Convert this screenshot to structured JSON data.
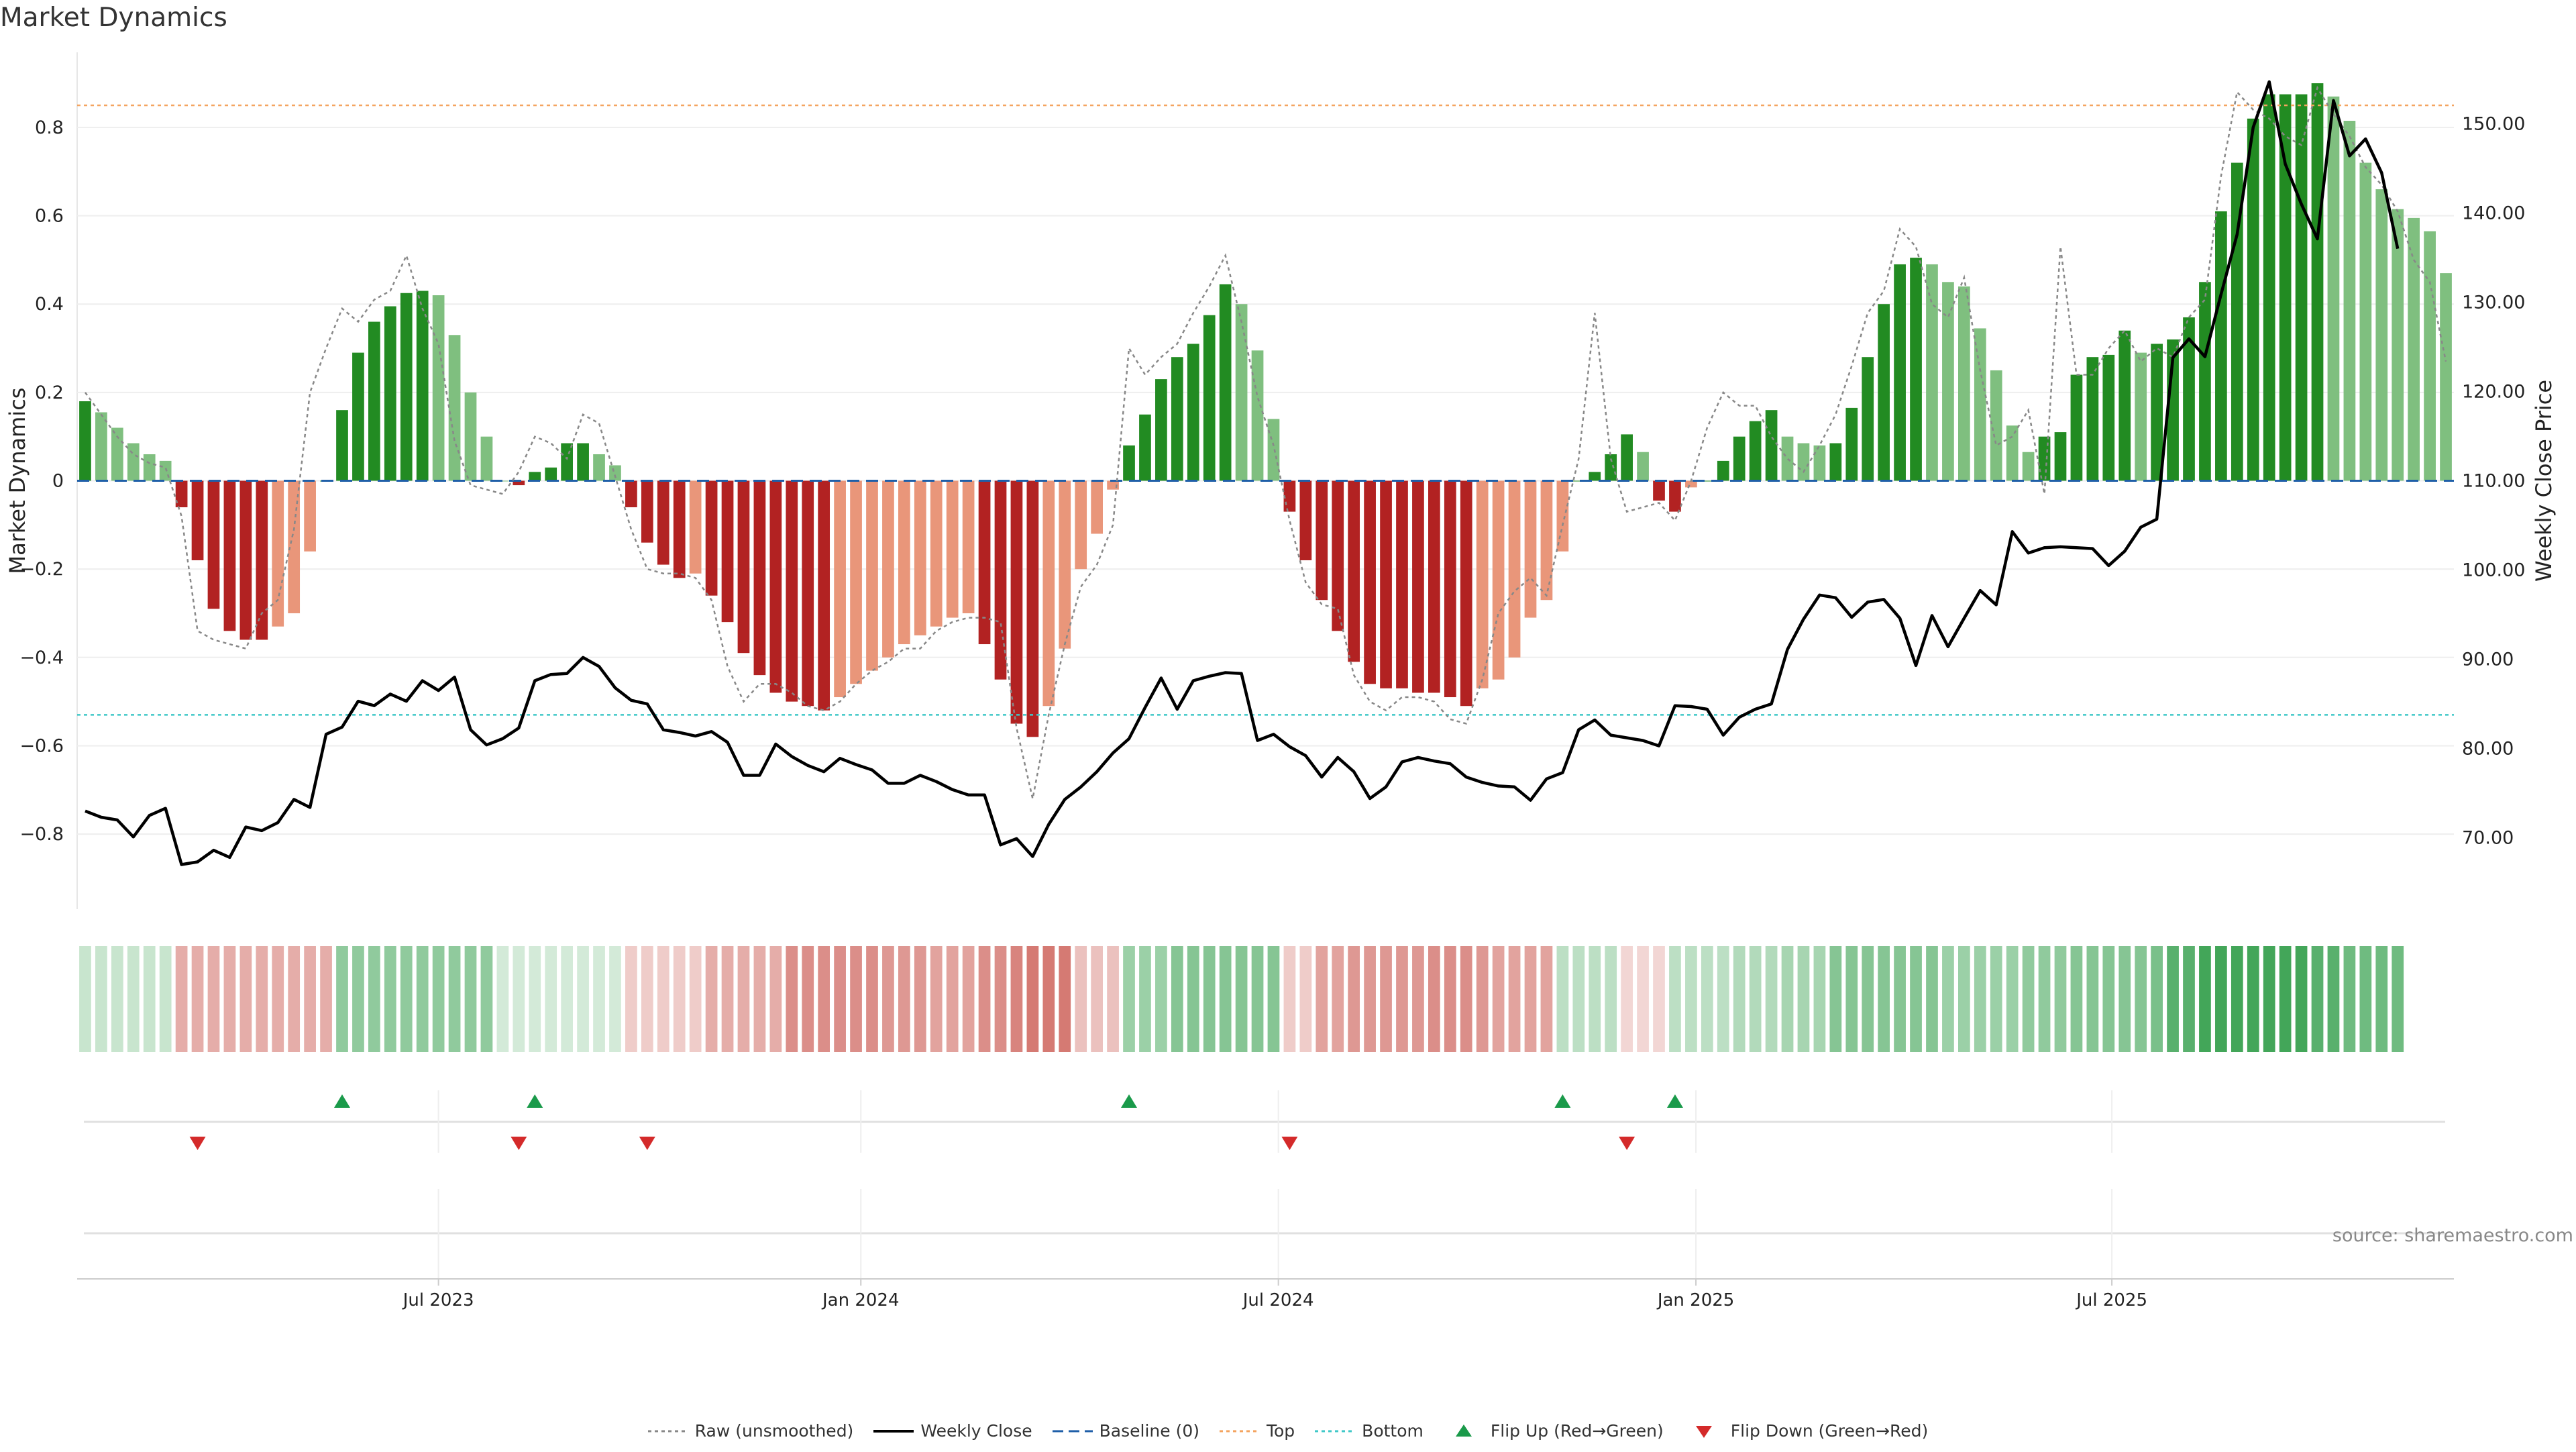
{
  "chart_data": {
    "type": "bar",
    "title": "Market Dynamics",
    "ylabel": "Market Dynamics",
    "ylabel_right": "Weekly Close Price",
    "source": "source: sharemaestro.com",
    "ylim": [
      -0.97,
      0.97
    ],
    "ylim_right": [
      62,
      158
    ],
    "left_ticks": [
      "−0.8",
      "−0.6",
      "−0.4",
      "−0.2",
      "0",
      "0.2",
      "0.4",
      "0.6",
      "0.8"
    ],
    "left_tick_values": [
      -0.8,
      -0.6,
      -0.4,
      -0.2,
      0,
      0.2,
      0.4,
      0.6,
      0.8
    ],
    "right_ticks": [
      "70.00",
      "80.00",
      "90.00",
      "100.00",
      "110.00",
      "120.00",
      "130.00",
      "140.00",
      "150.00"
    ],
    "right_tick_values": [
      70,
      80,
      90,
      100,
      110,
      120,
      130,
      140,
      150
    ],
    "x_ticks": [
      "Jul 2023",
      "Jan 2024",
      "Jul 2024",
      "Jan 2025",
      "Jul 2025"
    ],
    "x_tick_weeks": [
      22,
      48.3,
      74.3,
      100.3,
      126.2
    ],
    "top_level": 0.85,
    "bottom_level": -0.53,
    "values": [
      0.18,
      0.155,
      0.12,
      0.085,
      0.06,
      0.045,
      -0.06,
      -0.18,
      -0.29,
      -0.34,
      -0.36,
      -0.36,
      -0.33,
      -0.3,
      -0.16,
      0,
      0.16,
      0.29,
      0.36,
      0.395,
      0.425,
      0.43,
      0.42,
      0.33,
      0.2,
      0.1,
      0,
      -0.01,
      0.02,
      0.03,
      0.085,
      0.085,
      0.06,
      0.035,
      -0.06,
      -0.14,
      -0.19,
      -0.22,
      -0.21,
      -0.26,
      -0.32,
      -0.39,
      -0.44,
      -0.48,
      -0.5,
      -0.51,
      -0.52,
      -0.49,
      -0.46,
      -0.43,
      -0.4,
      -0.37,
      -0.35,
      -0.33,
      -0.31,
      -0.3,
      -0.37,
      -0.45,
      -0.55,
      -0.58,
      -0.51,
      -0.38,
      -0.2,
      -0.12,
      -0.02,
      0.08,
      0.15,
      0.23,
      0.28,
      0.31,
      0.375,
      0.445,
      0.4,
      0.295,
      0.14,
      -0.07,
      -0.18,
      -0.27,
      -0.34,
      -0.41,
      -0.46,
      -0.47,
      -0.47,
      -0.48,
      -0.48,
      -0.49,
      -0.51,
      -0.47,
      -0.45,
      -0.4,
      -0.31,
      -0.27,
      -0.16,
      0,
      0.02,
      0.06,
      0.105,
      0.065,
      -0.045,
      -0.07,
      -0.015,
      0,
      0.045,
      0.1,
      0.135,
      0.16,
      0.1,
      0.085,
      0.08,
      0.085,
      0.165,
      0.28,
      0.4,
      0.49,
      0.505,
      0.49,
      0.45,
      0.44,
      0.345,
      0.25,
      0.125,
      0.065,
      0.1,
      0.11,
      0.24,
      0.28,
      0.285,
      0.34,
      0.29,
      0.31,
      0.32,
      0.37,
      0.45,
      0.61,
      0.72,
      0.82,
      0.875,
      0.875,
      0.875,
      0.9,
      0.87,
      0.815,
      0.72,
      0.66,
      0.615,
      0.595,
      0.565,
      0.47
    ],
    "raw": [
      0.2,
      0.15,
      0.1,
      0.06,
      0.04,
      0.03,
      -0.08,
      -0.34,
      -0.36,
      -0.37,
      -0.38,
      -0.3,
      -0.27,
      -0.11,
      0.2,
      0.3,
      0.39,
      0.36,
      0.41,
      0.43,
      0.51,
      0.39,
      0.31,
      0.09,
      -0.01,
      -0.02,
      -0.03,
      0.02,
      0.1,
      0.085,
      0.05,
      0.15,
      0.13,
      0.01,
      -0.11,
      -0.2,
      -0.21,
      -0.21,
      -0.22,
      -0.27,
      -0.42,
      -0.5,
      -0.46,
      -0.46,
      -0.48,
      -0.51,
      -0.52,
      -0.5,
      -0.46,
      -0.43,
      -0.41,
      -0.38,
      -0.38,
      -0.34,
      -0.32,
      -0.31,
      -0.31,
      -0.32,
      -0.56,
      -0.72,
      -0.53,
      -0.37,
      -0.24,
      -0.19,
      -0.1,
      0.3,
      0.24,
      0.28,
      0.31,
      0.38,
      0.44,
      0.51,
      0.36,
      0.19,
      0.08,
      -0.09,
      -0.23,
      -0.28,
      -0.29,
      -0.44,
      -0.5,
      -0.52,
      -0.49,
      -0.49,
      -0.5,
      -0.54,
      -0.55,
      -0.45,
      -0.3,
      -0.25,
      -0.22,
      -0.26,
      -0.1,
      0.05,
      0.38,
      0.05,
      -0.07,
      -0.06,
      -0.05,
      -0.09,
      0,
      0.12,
      0.2,
      0.17,
      0.17,
      0.1,
      0.05,
      0.02,
      0.08,
      0.15,
      0.26,
      0.38,
      0.43,
      0.57,
      0.53,
      0.4,
      0.37,
      0.46,
      0.25,
      0.08,
      0.1,
      0.16,
      -0.03,
      0.53,
      0.24,
      0.24,
      0.3,
      0.34,
      0.27,
      0.3,
      0.28,
      0.37,
      0.41,
      0.69,
      0.88,
      0.84,
      0.82,
      0.78,
      0.76,
      0.89,
      0.83,
      0.78,
      0.71,
      0.67,
      0.61,
      0.5,
      0.45,
      0.27
    ],
    "weekly_close": [
      73,
      72.3,
      72,
      70.1,
      72.5,
      73.3,
      67,
      67.3,
      68.6,
      67.8,
      71.2,
      70.8,
      71.7,
      74.3,
      73.4,
      81.6,
      82.4,
      85.3,
      84.8,
      86.1,
      85.3,
      87.6,
      86.5,
      88,
      82.1,
      80.4,
      81.1,
      82.3,
      87.6,
      88.3,
      88.4,
      90.2,
      89.2,
      86.8,
      85.4,
      85,
      82.1,
      81.8,
      81.4,
      81.9,
      80.7,
      77,
      77,
      80.5,
      79.1,
      78.1,
      77.4,
      78.9,
      78.2,
      77.6,
      76.1,
      76.1,
      77,
      76.3,
      75.4,
      74.8,
      74.8,
      69.2,
      69.9,
      67.9,
      71.5,
      74.3,
      75.7,
      77.4,
      79.5,
      81.1,
      84.6,
      87.9,
      84.4,
      87.6,
      88.1,
      88.5,
      88.4,
      80.9,
      81.6,
      80.2,
      79.2,
      76.8,
      79,
      77.4,
      74.4,
      75.7,
      78.5,
      79,
      78.6,
      78.3,
      76.8,
      76.2,
      75.8,
      75.7,
      74.2,
      76.6,
      77.3,
      82.1,
      83.2,
      81.5,
      81.2,
      80.9,
      80.3,
      84.8,
      84.7,
      84.4,
      81.5,
      83.5,
      84.4,
      85,
      91.1,
      94.5,
      97.2,
      96.9,
      94.7,
      96.4,
      96.7,
      94.6,
      89.3,
      94.9,
      91.4,
      94.6,
      97.7,
      96.1,
      104.3,
      101.9,
      102.5,
      102.6,
      102.5,
      102.4,
      100.5,
      102.1,
      104.8,
      105.7,
      123.8,
      125.9,
      123.9,
      130.9,
      137.6,
      149.6,
      154.7,
      145.5,
      141,
      137.1,
      152.6,
      146.4,
      148.3,
      144.5,
      136
    ],
    "heat": [
      0.25,
      0.25,
      0.25,
      0.25,
      0.25,
      0.25,
      -0.4,
      -0.4,
      -0.4,
      -0.4,
      -0.4,
      -0.4,
      -0.4,
      -0.4,
      -0.4,
      -0.4,
      0.5,
      0.5,
      0.5,
      0.5,
      0.5,
      0.5,
      0.5,
      0.5,
      0.5,
      0.5,
      0.2,
      0.2,
      0.2,
      0.2,
      0.2,
      0.2,
      0.2,
      0.2,
      -0.25,
      -0.25,
      -0.25,
      -0.25,
      -0.25,
      -0.4,
      -0.4,
      -0.4,
      -0.4,
      -0.4,
      -0.55,
      -0.55,
      -0.55,
      -0.55,
      -0.55,
      -0.55,
      -0.5,
      -0.5,
      -0.5,
      -0.45,
      -0.45,
      -0.45,
      -0.55,
      -0.55,
      -0.6,
      -0.65,
      -0.65,
      -0.65,
      -0.3,
      -0.3,
      -0.3,
      0.45,
      0.45,
      0.45,
      0.55,
      0.55,
      0.55,
      0.55,
      0.55,
      0.55,
      0.55,
      -0.25,
      -0.25,
      -0.45,
      -0.45,
      -0.5,
      -0.5,
      -0.5,
      -0.5,
      -0.5,
      -0.55,
      -0.55,
      -0.55,
      -0.5,
      -0.45,
      -0.45,
      -0.45,
      -0.45,
      0.3,
      0.3,
      0.3,
      0.3,
      -0.2,
      -0.2,
      -0.2,
      0.3,
      0.3,
      0.3,
      0.3,
      0.35,
      0.35,
      0.35,
      0.4,
      0.4,
      0.4,
      0.55,
      0.55,
      0.55,
      0.55,
      0.55,
      0.55,
      0.55,
      0.45,
      0.45,
      0.45,
      0.45,
      0.45,
      0.5,
      0.5,
      0.5,
      0.55,
      0.55,
      0.55,
      0.55,
      0.55,
      0.6,
      0.75,
      0.75,
      0.85,
      0.85,
      0.85,
      0.85,
      0.85,
      0.85,
      0.85,
      0.75,
      0.75,
      0.65,
      0.65,
      0.65,
      0.65
    ],
    "flips_up": [
      16,
      28,
      65,
      92,
      99
    ],
    "flips_down": [
      7,
      27,
      35,
      75,
      96
    ],
    "colors": {
      "dark_green": "#228b22",
      "light_green": "#7fbf7f",
      "dark_red": "#b22222",
      "light_red": "#e9967a",
      "top_line": "#f4a460",
      "bottom_line": "#40c8c8",
      "baseline": "#1f5fa8",
      "close_line": "#000000",
      "raw_line": "#888888",
      "flip_up": "#1a9a4a",
      "flip_down": "#d42a2a"
    },
    "legend": [
      {
        "key": "raw",
        "label": "Raw (unsmoothed)"
      },
      {
        "key": "close",
        "label": "Weekly Close"
      },
      {
        "key": "baseline",
        "label": "Baseline (0)"
      },
      {
        "key": "top",
        "label": "Top"
      },
      {
        "key": "bottom",
        "label": "Bottom"
      },
      {
        "key": "flip_up",
        "label": "Flip Up (Red→Green)"
      },
      {
        "key": "flip_down",
        "label": "Flip Down (Green→Red)"
      }
    ]
  }
}
